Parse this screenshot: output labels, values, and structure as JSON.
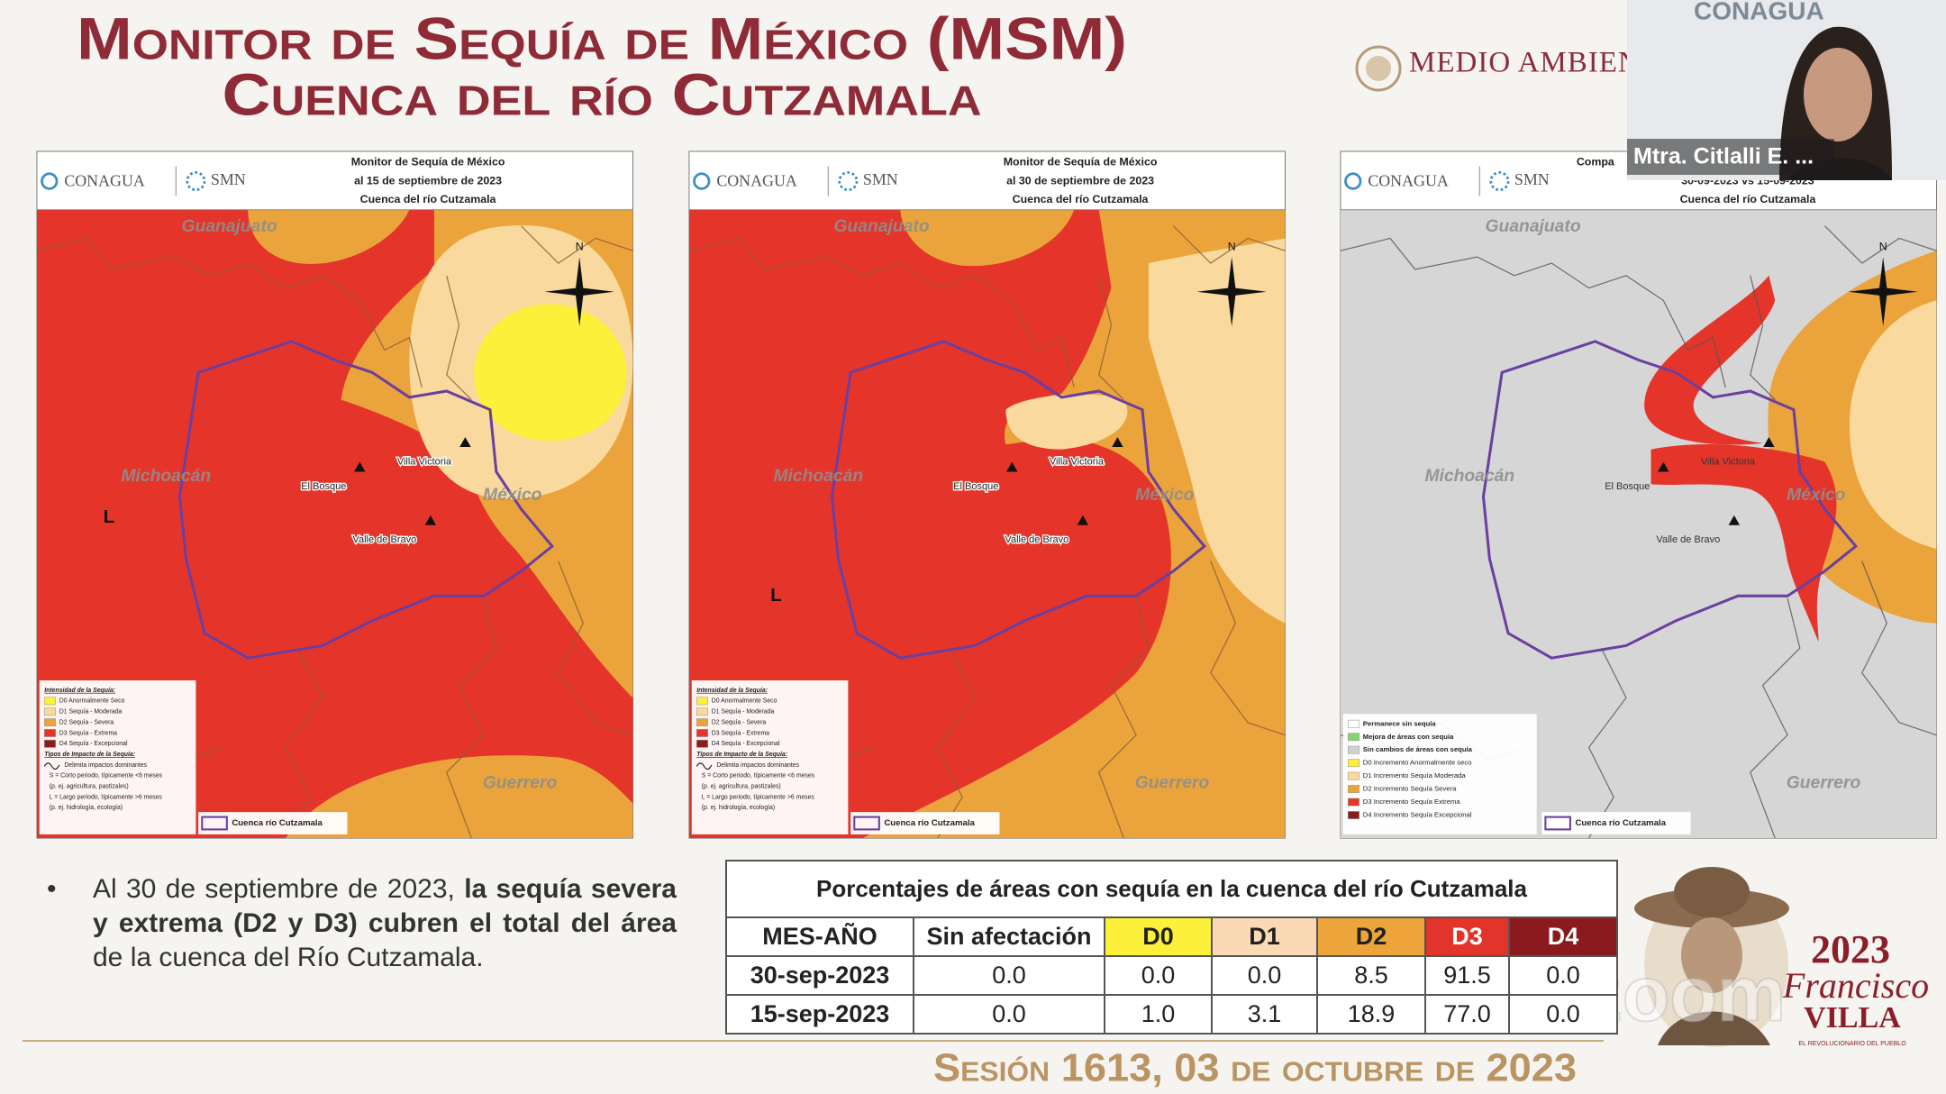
{
  "header": {
    "title_line1": "Monitor de Sequía de México (MSM)",
    "title_line2": "Cuenca del río Cutzamala",
    "logo": "MEDIO AMBIENTE"
  },
  "maps": [
    {
      "brand": "CONAGUA",
      "agency": "SMN",
      "heading": [
        "Monitor de Sequía de México",
        "al 15 de septiembre de 2023",
        "Cuenca del río Cutzamala"
      ],
      "compass": "N",
      "places": {
        "state_north": "Guanajuato",
        "state_west": "Michoacán",
        "state_east": "México",
        "state_south": "Guerrero",
        "el_bosque": "El Bosque",
        "villa_victoria": "Villa Victoria",
        "valle_de_bravo": "Valle de Bravo",
        "impact": "L"
      },
      "legend": [
        {
          "text": "Intensidad de la Sequía:"
        },
        {
          "text": "D0 Anormalmente Seco",
          "color": "#fdf03a"
        },
        {
          "text": "D1 Sequía - Moderada",
          "color": "#f9d99d"
        },
        {
          "text": "D2 Sequía - Severa",
          "color": "#eaa43b"
        },
        {
          "text": "D3 Sequía - Extrema",
          "color": "#e5352a"
        },
        {
          "text": "D4 Sequía - Excepcional",
          "color": "#8d1c1c"
        },
        {
          "text": "Tipos de Impacto de la Sequía:"
        },
        {
          "text": "Delimita impactos dominantes"
        },
        {
          "text": "S = Corto periodo, típicamente <6 meses"
        },
        {
          "text": "(p. ej. agricultura, pastizales)"
        },
        {
          "text": "L = Largo periodo, típicamente >6 meses"
        },
        {
          "text": "(p. ej. hidrología, ecología)"
        }
      ],
      "basin": "Cuenca río Cutzamala"
    },
    {
      "brand": "CONAGUA",
      "agency": "SMN",
      "heading": [
        "Monitor de Sequía de México",
        "al 30 de septiembre de 2023",
        "Cuenca del río Cutzamala"
      ],
      "compass": "N",
      "places": {
        "state_north": "Guanajuato",
        "state_west": "Michoacán",
        "state_east": "México",
        "state_south": "Guerrero",
        "el_bosque": "El Bosque",
        "villa_victoria": "Villa Victoria",
        "valle_de_bravo": "Valle de Bravo",
        "impact": "L"
      },
      "legend": [
        {
          "text": "Intensidad de la Sequía:"
        },
        {
          "text": "D0 Anormalmente Seco",
          "color": "#fdf03a"
        },
        {
          "text": "D1 Sequía - Moderada",
          "color": "#f9d99d"
        },
        {
          "text": "D2 Sequía - Severa",
          "color": "#eaa43b"
        },
        {
          "text": "D3 Sequía - Extrema",
          "color": "#e5352a"
        },
        {
          "text": "D4 Sequía - Excepcional",
          "color": "#8d1c1c"
        },
        {
          "text": "Tipos de Impacto de la Sequía:"
        },
        {
          "text": "Delimita impactos dominantes"
        },
        {
          "text": "S = Corto periodo, típicamente <6 meses"
        },
        {
          "text": "(p. ej. agricultura, pastizales)"
        },
        {
          "text": "L = Largo periodo, típicamente >6 meses"
        },
        {
          "text": "(p. ej. hidrología, ecología)"
        }
      ],
      "basin": "Cuenca río Cutzamala"
    },
    {
      "brand": "CONAGUA",
      "agency": "SMN",
      "heading": [
        "Compa",
        "30-09-2023  vs  15-09-2023",
        "Cuenca del río Cutzamala"
      ],
      "compass": "N",
      "places": {
        "state_north": "Guanajuato",
        "state_west": "Michoacán",
        "state_east": "México",
        "state_south": "Guerrero",
        "el_bosque": "El Bosque",
        "villa_victoria": "Villa Victoria",
        "valle_de_bravo": "Valle de Bravo"
      },
      "legend": [
        {
          "text": "Permanece sin sequía",
          "color": "#ffffff"
        },
        {
          "text": "Mejora de áreas con sequía",
          "color": "#86d46e"
        },
        {
          "text": "Sin cambios de áreas con sequía",
          "color": "#cfcfcf"
        },
        {
          "text": "D0  Incremento Anormalmente seco",
          "color": "#fdf03a"
        },
        {
          "text": "D1  Incremento Sequía Moderada",
          "color": "#f9d99d"
        },
        {
          "text": "D2  Incremento Sequía Severa",
          "color": "#eaa43b"
        },
        {
          "text": "D3  Incremento Sequía Extrema",
          "color": "#e5352a"
        },
        {
          "text": "D4  Incremento Sequía Excepcional",
          "color": "#8d1c1c"
        }
      ],
      "basin": "Cuenca río Cutzamala"
    }
  ],
  "bullet": [
    "Al 30 de septiembre de 2023, ",
    "la sequía severa y  extrema (D2 y D3) cubren el total del área",
    " de la cuenca del Río Cutzamala."
  ],
  "table": {
    "title": "Porcentajes de áreas con sequía en la cuenca del río Cutzamala",
    "columns": [
      {
        "text": "MES-AÑO"
      },
      {
        "text": "Sin afectación"
      },
      {
        "text": "D0",
        "color": "#fdf03a"
      },
      {
        "text": "D1",
        "color": "#fbd9b5"
      },
      {
        "text": "D2",
        "color": "#eda53b"
      },
      {
        "text": "D3",
        "color": "#e2342a"
      },
      {
        "text": "D4",
        "color": "#8b1a1e"
      }
    ],
    "rows": [
      [
        "30-sep-2023",
        "0.0",
        "0.0",
        "0.0",
        "8.5",
        "91.5",
        "0.0"
      ],
      [
        "15-sep-2023",
        "0.0",
        "1.0",
        "3.1",
        "18.9",
        "77.0",
        "0.0"
      ]
    ]
  },
  "footer": "Sesión 1613, 03 de octubre de 2023",
  "seal": {
    "year": "2023",
    "name": "Francisco",
    "surname": "VILLA",
    "motto": "EL REVOLUCIONARIO DEL PUEBLO"
  },
  "watermark": "zoom",
  "video": {
    "backdrop": "CONAGUA",
    "name": "Mtra. Citlalli E. ..."
  }
}
